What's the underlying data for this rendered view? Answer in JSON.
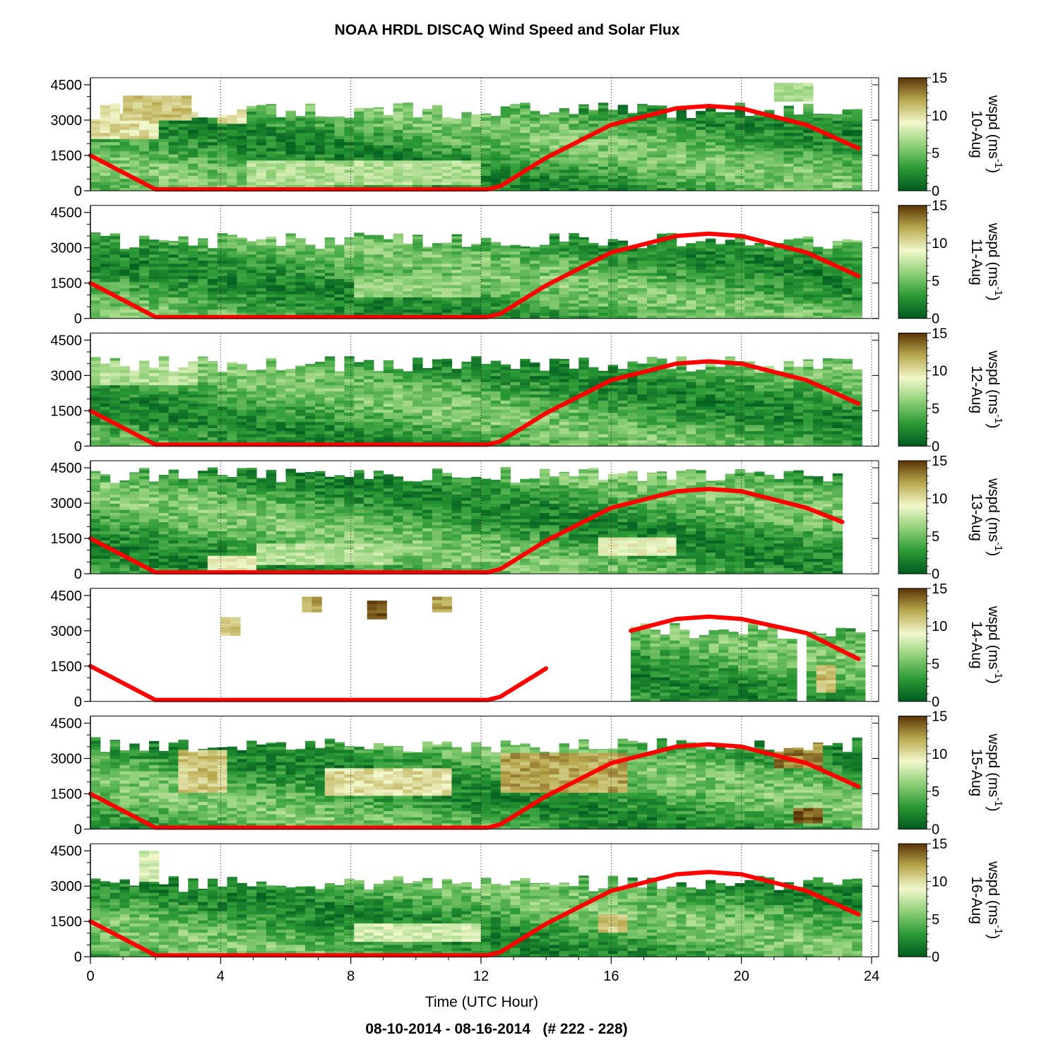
{
  "title": "NOAA HRDL DISCAQ Wind Speed and Solar Flux",
  "footer": "08-10-2014 - 08-16-2014   (# 222 - 228)",
  "chart_data": {
    "type": "heatmap",
    "xlabel": "Time (UTC Hour)",
    "xlim": [
      0,
      24
    ],
    "x_ticks": [
      "0",
      "4",
      "8",
      "12",
      "16",
      "20",
      "24"
    ],
    "y_ticks": [
      "0",
      "1500",
      "3000",
      "4500"
    ],
    "colorbar": {
      "label": "wspd (ms-1)",
      "label_main": "wspd (ms",
      "label_sup": "-1",
      "label_end": ")",
      "ticks": [
        "0",
        "5",
        "10",
        "15"
      ],
      "range": [
        0,
        15
      ],
      "colormap": [
        "#005a1e",
        "#2c9a36",
        "#8fd078",
        "#f2f8cc",
        "#b9aa50",
        "#5a3305"
      ]
    },
    "solar_flux_color": "#ff0000",
    "panels": [
      {
        "date": "10-Aug",
        "solar_flux": {
          "x": [
            0,
            2,
            12.2,
            12.6,
            14,
            16,
            18,
            19,
            20,
            22,
            23.6
          ],
          "y": [
            1500,
            60,
            60,
            200,
            1400,
            2800,
            3500,
            3600,
            3500,
            2800,
            1800
          ]
        },
        "coverage": [
          {
            "x": [
              0,
              23.6
            ],
            "top": 3400
          }
        ],
        "bright_patches": [
          {
            "x": [
              0,
              2
            ],
            "y": [
              2200,
              3700
            ],
            "wspd": 10
          },
          {
            "x": [
              1,
              3
            ],
            "y": [
              3000,
              4000
            ],
            "wspd": 11
          },
          {
            "x": [
              3.6,
              4.6
            ],
            "y": [
              2800,
              3600
            ],
            "wspd": 10
          },
          {
            "x": [
              4.5,
              12
            ],
            "y": [
              200,
              1200
            ],
            "wspd": 7
          },
          {
            "x": [
              21,
              22
            ],
            "y": [
              3800,
              4500
            ],
            "wspd": 7
          }
        ]
      },
      {
        "date": "11-Aug",
        "solar_flux": {
          "x": [
            0,
            2,
            12.2,
            12.6,
            14,
            16,
            18,
            19,
            20,
            22,
            23.6
          ],
          "y": [
            1500,
            60,
            60,
            200,
            1400,
            2800,
            3500,
            3600,
            3500,
            2800,
            1800
          ]
        },
        "coverage": [
          {
            "x": [
              0,
              23.6
            ],
            "top": 3300
          }
        ],
        "bright_patches": [
          {
            "x": [
              8,
              12
            ],
            "y": [
              900,
              1700
            ],
            "wspd": 6
          }
        ]
      },
      {
        "date": "12-Aug",
        "solar_flux": {
          "x": [
            0,
            2,
            12.2,
            12.6,
            14,
            16,
            18,
            19,
            20,
            22,
            23.6
          ],
          "y": [
            1500,
            60,
            60,
            200,
            1400,
            2800,
            3500,
            3600,
            3500,
            2800,
            1800
          ]
        },
        "coverage": [
          {
            "x": [
              0,
              23.6
            ],
            "top": 3500
          }
        ],
        "bright_patches": [
          {
            "x": [
              0,
              3
            ],
            "y": [
              2600,
              3600
            ],
            "wspd": 7
          }
        ]
      },
      {
        "date": "13-Aug",
        "solar_flux": {
          "x": [
            0,
            2,
            12.2,
            12.6,
            14,
            16,
            18,
            19,
            20,
            22,
            23.1
          ],
          "y": [
            1500,
            60,
            60,
            200,
            1400,
            2800,
            3500,
            3600,
            3500,
            2800,
            2200
          ]
        },
        "coverage": [
          {
            "x": [
              0,
              23.1
            ],
            "top": 4200
          }
        ],
        "bright_patches": [
          {
            "x": [
              3.5,
              5
            ],
            "y": [
              100,
              700
            ],
            "wspd": 9
          },
          {
            "x": [
              15.5,
              18
            ],
            "y": [
              700,
              1500
            ],
            "wspd": 9
          },
          {
            "x": [
              5,
              9
            ],
            "y": [
              300,
              1200
            ],
            "wspd": 7
          }
        ]
      },
      {
        "date": "14-Aug",
        "solar_flux": {
          "x": [
            0,
            2,
            12.2,
            12.6,
            14
          ],
          "y": [
            1500,
            60,
            60,
            200,
            1400
          ]
        },
        "solar_flux_2": {
          "x": [
            16.6,
            18,
            19,
            20,
            22,
            23.6
          ],
          "y": [
            3000,
            3500,
            3600,
            3500,
            2900,
            1800
          ]
        },
        "coverage": [
          {
            "x": [
              16.6,
              21.6
            ],
            "top": 3000
          },
          {
            "x": [
              22,
              23.6
            ],
            "top": 3000
          }
        ],
        "bright_patches": [
          {
            "x": [
              4,
              4.6
            ],
            "y": [
              2800,
              3500
            ],
            "wspd": 11
          },
          {
            "x": [
              6.5,
              7
            ],
            "y": [
              3800,
              4400
            ],
            "wspd": 12
          },
          {
            "x": [
              8.5,
              9
            ],
            "y": [
              3500,
              4200
            ],
            "wspd": 14
          },
          {
            "x": [
              10.5,
              11
            ],
            "y": [
              3800,
              4400
            ],
            "wspd": 12
          },
          {
            "x": [
              22.2,
              22.8
            ],
            "y": [
              300,
              1500
            ],
            "wspd": 11
          }
        ]
      },
      {
        "date": "15-Aug",
        "solar_flux": {
          "x": [
            0,
            2,
            12.2,
            12.6,
            14,
            16,
            18,
            19,
            20,
            22,
            23.6
          ],
          "y": [
            1500,
            60,
            60,
            200,
            1400,
            2800,
            3500,
            3600,
            3500,
            2800,
            1800
          ]
        },
        "coverage": [
          {
            "x": [
              0,
              23.6
            ],
            "top": 3600
          }
        ],
        "bright_patches": [
          {
            "x": [
              2.5,
              4
            ],
            "y": [
              1500,
              3300
            ],
            "wspd": 11
          },
          {
            "x": [
              7,
              11
            ],
            "y": [
              1400,
              2500
            ],
            "wspd": 10
          },
          {
            "x": [
              12.5,
              16.5
            ],
            "y": [
              1500,
              3200
            ],
            "wspd": 12
          },
          {
            "x": [
              21,
              22.5
            ],
            "y": [
              2500,
              3800
            ],
            "wspd": 13
          },
          {
            "x": [
              21.5,
              22.5
            ],
            "y": [
              200,
              900
            ],
            "wspd": 14
          }
        ]
      },
      {
        "date": "16-Aug",
        "solar_flux": {
          "x": [
            0,
            2,
            12.2,
            12.6,
            14,
            16,
            18,
            19,
            20,
            22,
            23.6
          ],
          "y": [
            1500,
            60,
            60,
            200,
            1400,
            2800,
            3500,
            3600,
            3500,
            2800,
            1800
          ]
        },
        "coverage": [
          {
            "x": [
              0,
              23.6
            ],
            "top": 3100
          }
        ],
        "bright_patches": [
          {
            "x": [
              1.5,
              2
            ],
            "y": [
              3200,
              4400
            ],
            "wspd": 8
          },
          {
            "x": [
              15.5,
              16.5
            ],
            "y": [
              1000,
              1700
            ],
            "wspd": 11
          },
          {
            "x": [
              8,
              12
            ],
            "y": [
              600,
              1300
            ],
            "wspd": 8
          }
        ]
      }
    ]
  }
}
